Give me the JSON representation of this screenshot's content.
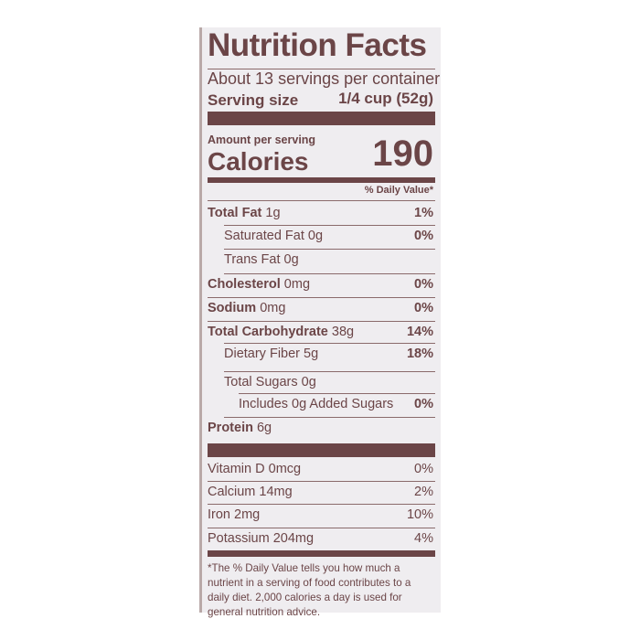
{
  "title": "Nutrition Facts",
  "servings_per_container": "About 13 servings per container",
  "serving_size_label": "Serving size",
  "serving_size_value": "1/4 cup (52g)",
  "amount_per_serving": "Amount per serving",
  "calories_label": "Calories",
  "calories_value": "190",
  "daily_value_header": "% Daily Value*",
  "nutrients": [
    {
      "name": "Total Fat",
      "amount": "1g",
      "dv": "1%",
      "bold": true,
      "indent": 0
    },
    {
      "name": "Saturated Fat",
      "amount": "0g",
      "dv": "0%",
      "bold": false,
      "indent": 1
    },
    {
      "name": "Trans Fat",
      "amount": "0g",
      "dv": "",
      "bold": false,
      "indent": 1
    },
    {
      "name": "Cholesterol",
      "amount": "0mg",
      "dv": "0%",
      "bold": true,
      "indent": 0
    },
    {
      "name": "Sodium",
      "amount": "0mg",
      "dv": "0%",
      "bold": true,
      "indent": 0
    },
    {
      "name": "Total Carbohydrate",
      "amount": "38g",
      "dv": "14%",
      "bold": true,
      "indent": 0
    },
    {
      "name": "Dietary Fiber",
      "amount": "5g",
      "dv": "18%",
      "bold": false,
      "indent": 1
    },
    {
      "name": "Total Sugars",
      "amount": "0g",
      "dv": "",
      "bold": false,
      "indent": 1
    },
    {
      "name": "Includes 0g Added Sugars",
      "amount": "",
      "dv": "0%",
      "bold": false,
      "indent": 2
    },
    {
      "name": "Protein",
      "amount": "6g",
      "dv": "",
      "bold": true,
      "indent": 0
    }
  ],
  "vitamins": [
    {
      "name": "Vitamin D",
      "amount": "0mcg",
      "dv": "0%"
    },
    {
      "name": "Calcium",
      "amount": "14mg",
      "dv": "2%"
    },
    {
      "name": "Iron",
      "amount": "2mg",
      "dv": "10%"
    },
    {
      "name": "Potassium",
      "amount": "204mg",
      "dv": "4%"
    }
  ],
  "footnote": "*The % Daily Value tells you how much a nutrient in a serving of food contributes to a daily diet. 2,000 calories a day is used for general nutrition advice.",
  "colors": {
    "ink": "#6b4547",
    "background": "#efedf0"
  }
}
